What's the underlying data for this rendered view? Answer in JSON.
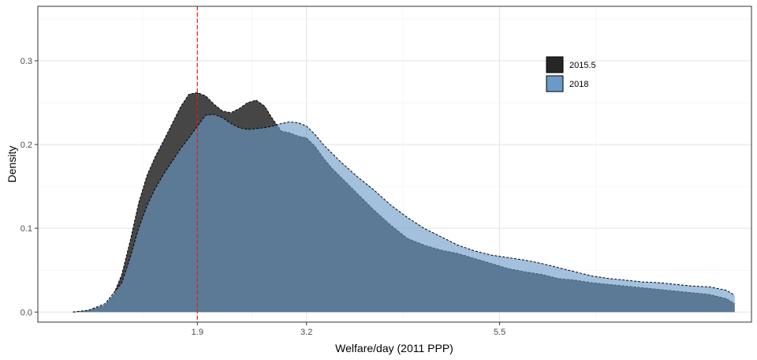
{
  "chart_data": {
    "type": "area",
    "xlabel": "Welfare/day (2011 PPP)",
    "ylabel": "Density",
    "xlim": [
      0,
      8.5
    ],
    "ylim": [
      -0.012,
      0.365
    ],
    "x_ticks": [
      1.9,
      3.2,
      5.5
    ],
    "y_ticks": [
      0.0,
      0.1,
      0.2,
      0.3
    ],
    "grid": true,
    "legend_position": "top-right",
    "reference_line": {
      "x": 1.9,
      "color": "#E41A1C",
      "style": "dashed"
    },
    "series": [
      {
        "name": "2015.5",
        "color": "#262626",
        "x": [
          0.42,
          0.6,
          0.8,
          0.9,
          1.0,
          1.1,
          1.2,
          1.3,
          1.4,
          1.5,
          1.6,
          1.7,
          1.8,
          1.9,
          2.0,
          2.1,
          2.2,
          2.3,
          2.4,
          2.5,
          2.6,
          2.7,
          2.8,
          2.9,
          3.0,
          3.1,
          3.2,
          3.3,
          3.4,
          3.5,
          3.6,
          3.8,
          4.0,
          4.2,
          4.4,
          4.6,
          4.8,
          5.0,
          5.2,
          5.4,
          5.6,
          5.8,
          6.0,
          6.2,
          6.4,
          6.6,
          6.8,
          7.0,
          7.2,
          7.4,
          7.6,
          7.8,
          8.0,
          8.2,
          8.3
        ],
        "y": [
          0.0,
          0.002,
          0.008,
          0.02,
          0.045,
          0.085,
          0.13,
          0.163,
          0.186,
          0.205,
          0.225,
          0.245,
          0.26,
          0.262,
          0.258,
          0.248,
          0.24,
          0.238,
          0.243,
          0.25,
          0.253,
          0.246,
          0.23,
          0.216,
          0.214,
          0.21,
          0.208,
          0.198,
          0.184,
          0.172,
          0.162,
          0.142,
          0.122,
          0.104,
          0.088,
          0.08,
          0.074,
          0.07,
          0.064,
          0.058,
          0.052,
          0.048,
          0.045,
          0.04,
          0.038,
          0.035,
          0.033,
          0.031,
          0.029,
          0.027,
          0.025,
          0.023,
          0.021,
          0.016,
          0.01
        ]
      },
      {
        "name": "2018",
        "color": "#6A9AC8",
        "x": [
          0.42,
          0.6,
          0.8,
          1.0,
          1.1,
          1.2,
          1.3,
          1.4,
          1.5,
          1.6,
          1.7,
          1.8,
          1.9,
          2.0,
          2.1,
          2.2,
          2.3,
          2.4,
          2.5,
          2.6,
          2.7,
          2.8,
          2.9,
          3.0,
          3.1,
          3.2,
          3.3,
          3.4,
          3.5,
          3.6,
          3.8,
          4.0,
          4.2,
          4.4,
          4.6,
          4.8,
          5.0,
          5.2,
          5.4,
          5.6,
          5.8,
          6.0,
          6.2,
          6.4,
          6.6,
          6.8,
          7.0,
          7.2,
          7.4,
          7.6,
          7.8,
          8.0,
          8.2,
          8.3
        ],
        "y": [
          0.0,
          0.002,
          0.01,
          0.035,
          0.065,
          0.1,
          0.127,
          0.148,
          0.165,
          0.18,
          0.195,
          0.208,
          0.222,
          0.235,
          0.236,
          0.232,
          0.225,
          0.22,
          0.218,
          0.219,
          0.22,
          0.222,
          0.225,
          0.227,
          0.226,
          0.222,
          0.212,
          0.2,
          0.19,
          0.18,
          0.162,
          0.146,
          0.128,
          0.113,
          0.1,
          0.09,
          0.08,
          0.073,
          0.068,
          0.065,
          0.062,
          0.058,
          0.053,
          0.048,
          0.043,
          0.04,
          0.038,
          0.036,
          0.035,
          0.033,
          0.031,
          0.03,
          0.026,
          0.02
        ]
      }
    ]
  }
}
